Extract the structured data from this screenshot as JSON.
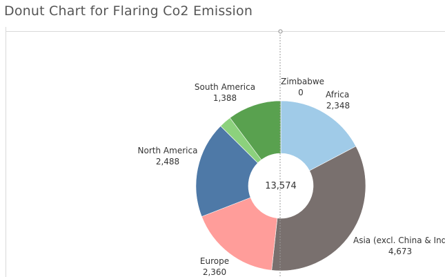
{
  "chart_data": {
    "type": "pie",
    "title": "Donut Chart for Flaring Co2 Emission",
    "total_label": "13,574",
    "axis_zero_label": "0",
    "slices": [
      {
        "name": "Zimbabwe",
        "value": 0,
        "value_label": "0",
        "color": "#a0cbe8"
      },
      {
        "name": "Africa",
        "value": 2348,
        "value_label": "2,348",
        "color": "#a0cbe8"
      },
      {
        "name": "Asia (excl. China & India)",
        "value": 4673,
        "value_label": "4,673",
        "color": "#79706e"
      },
      {
        "name": "Europe",
        "value": 2360,
        "value_label": "2,360",
        "color": "#ff9d9a"
      },
      {
        "name": "North America",
        "value": 2488,
        "value_label": "2,488",
        "color": "#4e79a7"
      },
      {
        "name": "",
        "value": 317,
        "value_label": "",
        "color": "#8cd17d"
      },
      {
        "name": "South America",
        "value": 1388,
        "value_label": "1,388",
        "color": "#59a14f"
      }
    ],
    "grid": false
  }
}
